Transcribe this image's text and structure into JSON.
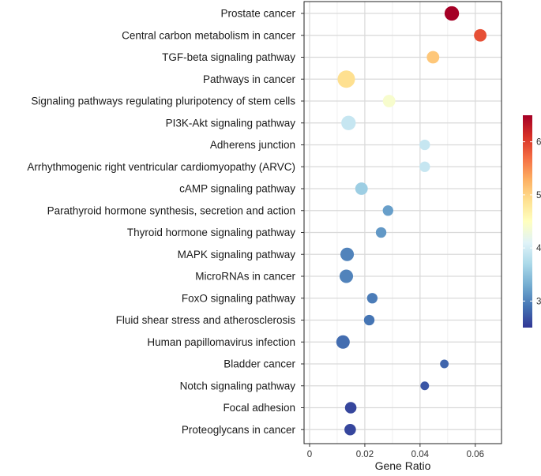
{
  "chart_data": {
    "type": "scatter",
    "title": "",
    "xlabel": "Gene Ratio",
    "ylabel": "",
    "xlim": [
      -0.002,
      0.0695
    ],
    "x_ticks": [
      0,
      0.02,
      0.04,
      0.06
    ],
    "x_tick_labels": [
      "0",
      "0.02",
      "0.04",
      "0.06"
    ],
    "grid": true,
    "legend": "right",
    "colorbar": {
      "min": 2.5,
      "max": 6.5,
      "ticks": [
        3,
        4,
        5,
        6
      ],
      "tick_labels": [
        "3",
        "4",
        "5",
        "6"
      ],
      "colors": [
        "#313695",
        "#4575b4",
        "#74add1",
        "#abd9e9",
        "#e0f3f8",
        "#ffffbf",
        "#fee090",
        "#fdae61",
        "#f46d43",
        "#d73027",
        "#a50026"
      ]
    },
    "points": [
      {
        "term": "Prostate cancer",
        "x": 0.0515,
        "color_value": 6.5,
        "size": 8
      },
      {
        "term": "Central carbon metabolism in cancer",
        "x": 0.0618,
        "color_value": 5.9,
        "size": 6
      },
      {
        "term": "TGF-beta signaling pathway",
        "x": 0.0447,
        "color_value": 5.1,
        "size": 6
      },
      {
        "term": "Pathways in cancer",
        "x": 0.0133,
        "color_value": 4.9,
        "size": 11
      },
      {
        "term": "Signaling pathways regulating pluripotency of stem cells",
        "x": 0.0288,
        "color_value": 4.4,
        "size": 6
      },
      {
        "term": "PI3K-Akt signaling pathway",
        "x": 0.0141,
        "color_value": 3.9,
        "size": 8
      },
      {
        "term": "Adherens junction",
        "x": 0.0417,
        "color_value": 3.9,
        "size": 4
      },
      {
        "term": "Arrhythmogenic right ventricular cardiomyopathy (ARVC)",
        "x": 0.0417,
        "color_value": 3.9,
        "size": 4
      },
      {
        "term": "cAMP signaling pathway",
        "x": 0.0188,
        "color_value": 3.6,
        "size": 6
      },
      {
        "term": "Parathyroid hormone synthesis, secretion and action",
        "x": 0.0284,
        "color_value": 3.2,
        "size": 4
      },
      {
        "term": "Thyroid hormone signaling pathway",
        "x": 0.0259,
        "color_value": 3.15,
        "size": 4
      },
      {
        "term": "MAPK signaling pathway",
        "x": 0.0136,
        "color_value": 3.0,
        "size": 7
      },
      {
        "term": "MicroRNAs in cancer",
        "x": 0.0133,
        "color_value": 3.0,
        "size": 7
      },
      {
        "term": "FoxO signaling pathway",
        "x": 0.0227,
        "color_value": 2.95,
        "size": 4
      },
      {
        "term": "Fluid shear stress and atherosclerosis",
        "x": 0.0216,
        "color_value": 2.9,
        "size": 4
      },
      {
        "term": "Human papillomavirus infection",
        "x": 0.0121,
        "color_value": 2.85,
        "size": 7
      },
      {
        "term": "Bladder cancer",
        "x": 0.0488,
        "color_value": 2.8,
        "size": 2
      },
      {
        "term": "Notch signaling pathway",
        "x": 0.0417,
        "color_value": 2.7,
        "size": 2
      },
      {
        "term": "Focal adhesion",
        "x": 0.0149,
        "color_value": 2.6,
        "size": 5
      },
      {
        "term": "Proteoglycans in cancer",
        "x": 0.0147,
        "color_value": 2.6,
        "size": 5
      }
    ]
  }
}
